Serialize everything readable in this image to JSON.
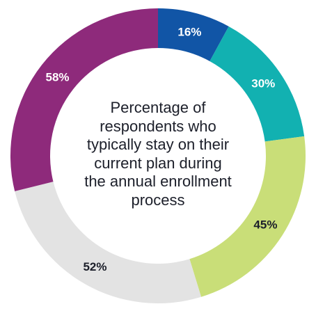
{
  "chart_data": {
    "type": "pie",
    "donut": true,
    "title_lines": [
      "Percentage of",
      "respondents who",
      "typically stay on their",
      "current plan during",
      "the annual enrollment",
      "process"
    ],
    "categories": [
      "16%",
      "30%",
      "45%",
      "52%",
      "58%"
    ],
    "values": [
      16,
      30,
      45,
      52,
      58
    ],
    "colors": [
      "#1155a6",
      "#12b1b1",
      "#c9de78",
      "#e3e3e3",
      "#8e2a7b"
    ],
    "label_colors": [
      "#ffffff",
      "#ffffff",
      "#1c1f2a",
      "#1c1f2a",
      "#ffffff"
    ]
  }
}
